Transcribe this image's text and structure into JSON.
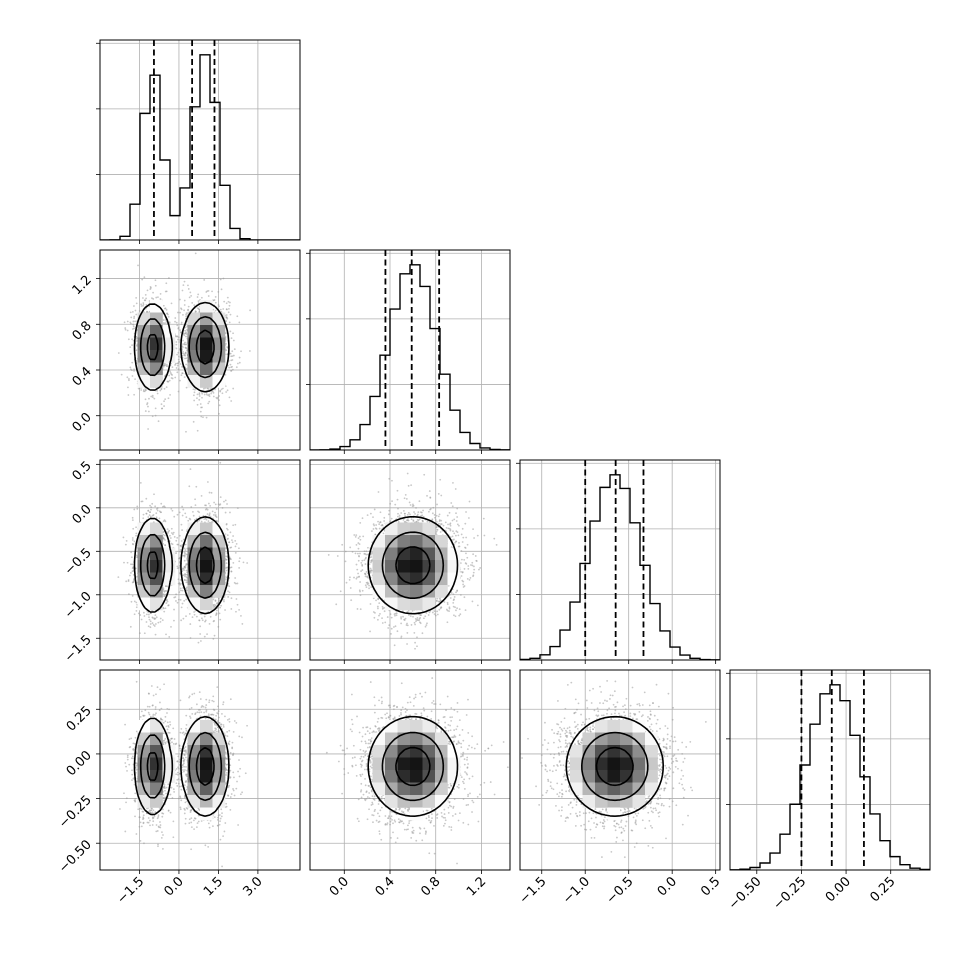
{
  "chart_data": {
    "type": "corner",
    "title": "",
    "parameters": [
      {
        "range": [
          -3.0,
          4.6
        ],
        "xticks": [
          -1.5,
          0.0,
          1.5,
          3.0
        ],
        "xtick_labels": [
          "−1.5",
          "0.0",
          "1.5",
          "3.0"
        ],
        "quantiles": [
          -0.95,
          0.5,
          1.35
        ],
        "modes": [
          {
            "mean": -1.0,
            "sd": 0.38,
            "w": 0.42
          },
          {
            "mean": 1.0,
            "sd": 0.48,
            "w": 0.58
          }
        ]
      },
      {
        "range": [
          -0.3,
          1.45
        ],
        "ticks": [
          0.0,
          0.4,
          0.8,
          1.2
        ],
        "tick_labels": [
          "0.0",
          "0.4",
          "0.8",
          "1.2"
        ],
        "quantiles": [
          0.36,
          0.59,
          0.83
        ],
        "modes": [
          {
            "mean": 0.6,
            "sd": 0.21,
            "w": 1.0
          }
        ]
      },
      {
        "range": [
          -1.75,
          0.55
        ],
        "ticks": [
          -1.5,
          -1.0,
          -0.5,
          0.0,
          0.5
        ],
        "tick_labels": [
          "−1.5",
          "−1.0",
          "−0.5",
          "0.0",
          "0.5"
        ],
        "quantiles": [
          -1.0,
          -0.65,
          -0.33
        ],
        "modes": [
          {
            "mean": -0.66,
            "sd": 0.3,
            "w": 1.0
          }
        ]
      },
      {
        "range": [
          -0.65,
          0.47
        ],
        "ticks": [
          -0.5,
          -0.25,
          0.0,
          0.25
        ],
        "tick_labels": [
          "−0.50",
          "−0.25",
          "0.00",
          "0.25"
        ],
        "quantiles": [
          -0.25,
          -0.08,
          0.1
        ],
        "modes": [
          {
            "mean": -0.07,
            "sd": 0.15,
            "w": 1.0
          }
        ]
      }
    ],
    "histogram_ticks": 3,
    "contour_levels": 3,
    "grid": true,
    "legend": "none"
  }
}
